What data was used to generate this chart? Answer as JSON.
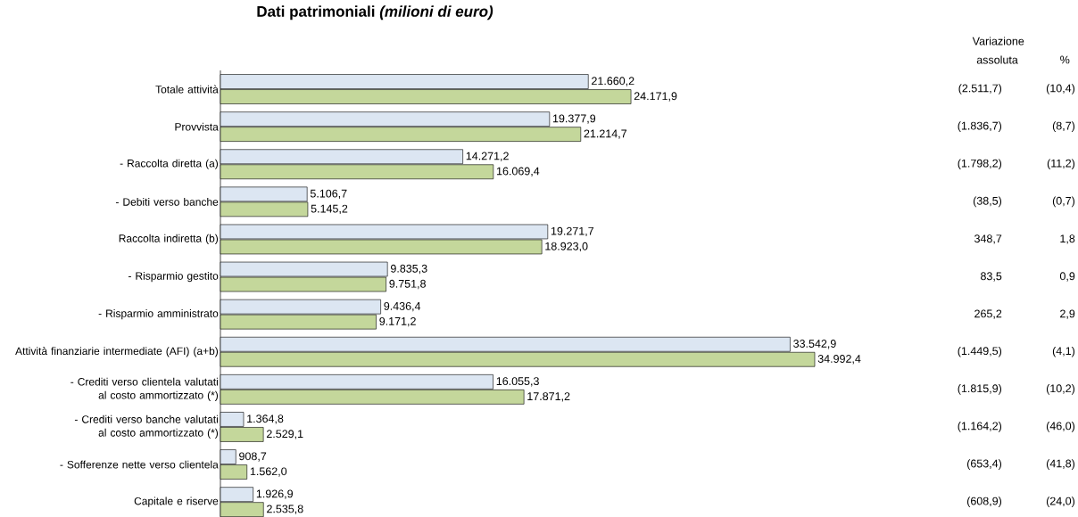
{
  "chart_data": {
    "type": "bar",
    "orientation": "horizontal",
    "title": "**Dati patrimoniali** *(milioni di euro)*",
    "categories": [
      "Totale attività",
      "Provvista",
      "- Raccolta diretta (a)",
      "- Debiti verso banche",
      "Raccolta indiretta (b)",
      "- Risparmio gestito",
      "- Risparmio amministrato",
      "Attività finanziarie intermediate (AFI) (a+b)",
      "- Crediti verso clientela valutati al costo ammortizzato (*)",
      "- Crediti verso banche valutati al costo ammortizzato (*)",
      "- Sofferenze nette verso clientela",
      "Capitale e riserve"
    ],
    "series": [
      {
        "color": "#dce6f2",
        "values": [
          21660.2,
          19377.9,
          14271.2,
          5106.7,
          19271.7,
          9835.3,
          9436.4,
          33542.9,
          16055.3,
          1364.8,
          908.7,
          1926.9
        ],
        "value_labels": [
          "21.660,2",
          "19.377,9",
          "14.271,2",
          "5.106,7",
          "19.271,7",
          "9.835,3",
          "9.436,4",
          "33.542,9",
          "16.055,3",
          "1.364,8",
          "908,7",
          "1.926,9"
        ]
      },
      {
        "color": "#c4d79b",
        "values": [
          24171.9,
          21214.7,
          16069.4,
          5145.2,
          18923.0,
          9751.8,
          9171.2,
          34992.4,
          17871.2,
          2529.1,
          1562.0,
          2535.8
        ],
        "value_labels": [
          "24.171,9",
          "21.214,7",
          "16.069,4",
          "5.145,2",
          "18.923,0",
          "9.751,8",
          "9.171,2",
          "34.992,4",
          "17.871,2",
          "2.529,1",
          "1.562,0",
          "2.535,8"
        ]
      }
    ],
    "annotations": [
      "Variazione",
      "assoluta",
      "%",
      "(2.511,7)",
      "(10,4)",
      "(1.836,7)",
      "(8,7)",
      "(1.798,2)",
      "(11,2)",
      "(38,5)",
      "(0,7)",
      "348,7",
      "1,8",
      "83,5",
      "0,9",
      "265,2",
      "2,9",
      "(1.449,5)",
      "(4,1)",
      "(1.815,9)",
      "(10,2)",
      "(1.164,2)",
      "(46,0)",
      "(653,4)",
      "(41,8)",
      "(608,9)",
      "(24,0)"
    ]
  }
}
